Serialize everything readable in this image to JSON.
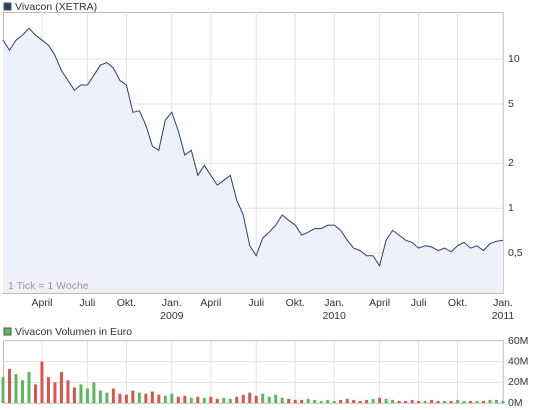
{
  "chart_data": [
    {
      "type": "line",
      "log_scale": true,
      "grid": true,
      "y_axis_side": "right",
      "fill_color": "#eef0fa",
      "annotation": "1 Tick = 1 Woche",
      "categories": [
        null,
        null,
        null,
        null,
        null,
        null,
        "April",
        null,
        null,
        null,
        null,
        null,
        null,
        "Juli",
        null,
        null,
        null,
        null,
        null,
        "Okt.",
        null,
        null,
        null,
        null,
        null,
        null,
        "Jan.",
        null,
        null,
        null,
        null,
        null,
        "April",
        null,
        null,
        null,
        null,
        null,
        null,
        "Juli",
        null,
        null,
        null,
        null,
        null,
        "Okt.",
        null,
        null,
        null,
        null,
        null,
        "Jan.",
        null,
        null,
        null,
        null,
        null,
        null,
        "April",
        null,
        null,
        null,
        null,
        null,
        "Juli",
        null,
        null,
        null,
        null,
        null,
        "Okt.",
        null,
        null,
        null,
        null,
        null,
        null,
        "Jan."
      ],
      "category_years": [
        null,
        null,
        null,
        null,
        null,
        null,
        null,
        null,
        null,
        null,
        null,
        null,
        null,
        null,
        null,
        null,
        null,
        null,
        null,
        null,
        null,
        null,
        null,
        null,
        null,
        null,
        "2009",
        null,
        null,
        null,
        null,
        null,
        null,
        null,
        null,
        null,
        null,
        null,
        null,
        null,
        null,
        null,
        null,
        null,
        null,
        null,
        null,
        null,
        null,
        null,
        null,
        "2010",
        null,
        null,
        null,
        null,
        null,
        null,
        null,
        null,
        null,
        null,
        null,
        null,
        null,
        null,
        null,
        null,
        null,
        null,
        null,
        null,
        null,
        null,
        null,
        null,
        null,
        "2011"
      ],
      "series": [
        {
          "name": "Vivacon (XETRA)",
          "color": "#2b3f6e",
          "values": [
            13.4,
            11.5,
            13.4,
            14.5,
            16.1,
            14.5,
            13.4,
            12.4,
            10.6,
            8.4,
            7.2,
            6.2,
            6.7,
            6.7,
            7.8,
            9.1,
            9.5,
            8.7,
            7.2,
            6.7,
            4.4,
            4.5,
            3.6,
            2.6,
            2.45,
            3.9,
            4.4,
            3.3,
            2.27,
            2.45,
            1.66,
            1.94,
            1.66,
            1.43,
            1.54,
            1.66,
            1.13,
            0.9,
            0.56,
            0.48,
            0.63,
            0.69,
            0.77,
            0.9,
            0.83,
            0.77,
            0.66,
            0.69,
            0.73,
            0.73,
            0.77,
            0.77,
            0.71,
            0.61,
            0.54,
            0.52,
            0.48,
            0.48,
            0.41,
            0.61,
            0.71,
            0.66,
            0.61,
            0.59,
            0.54,
            0.56,
            0.55,
            0.52,
            0.54,
            0.51,
            0.56,
            0.59,
            0.54,
            0.56,
            0.52,
            0.58,
            0.6,
            0.61
          ]
        }
      ],
      "ylim": [
        0.27,
        20.7
      ],
      "yticks": [
        10,
        5,
        2,
        1,
        {
          "value": 0.5,
          "label": "0,5"
        }
      ]
    },
    {
      "type": "bar",
      "grid": true,
      "y_axis_side": "right",
      "up_color": "#5cb85c",
      "down_color": "#d9534f",
      "series": [
        {
          "name": "Vivacon Volumen in Euro",
          "color": "#5cb85c",
          "values": [
            25000000,
            33000000,
            28000000,
            22000000,
            30000000,
            18000000,
            40000000,
            25000000,
            20000000,
            30000000,
            22000000,
            15000000,
            18000000,
            14000000,
            20000000,
            12000000,
            10000000,
            14000000,
            9000000,
            8000000,
            12000000,
            10000000,
            9000000,
            11000000,
            8000000,
            7000000,
            9000000,
            6000000,
            7000000,
            5000000,
            6000000,
            5000000,
            6000000,
            4000000,
            5000000,
            4000000,
            6000000,
            8000000,
            10000000,
            7000000,
            9000000,
            6000000,
            8000000,
            5000000,
            4000000,
            3000000,
            3000000,
            4000000,
            3000000,
            2000000,
            3000000,
            2000000,
            3000000,
            4000000,
            3000000,
            2000000,
            3000000,
            4000000,
            5000000,
            4000000,
            3000000,
            2000000,
            2000000,
            3000000,
            2000000,
            2000000,
            3000000,
            2000000,
            2000000,
            2000000,
            3000000,
            2000000,
            2000000,
            2000000,
            2000000,
            3000000,
            3000000,
            2000000
          ]
        }
      ],
      "ylim": [
        0,
        60000000
      ],
      "yticks": [
        {
          "value": 0,
          "label": "0M"
        },
        {
          "value": 20000000,
          "label": "20M"
        },
        {
          "value": 40000000,
          "label": "40M"
        },
        {
          "value": 60000000,
          "label": "60M"
        }
      ]
    }
  ]
}
